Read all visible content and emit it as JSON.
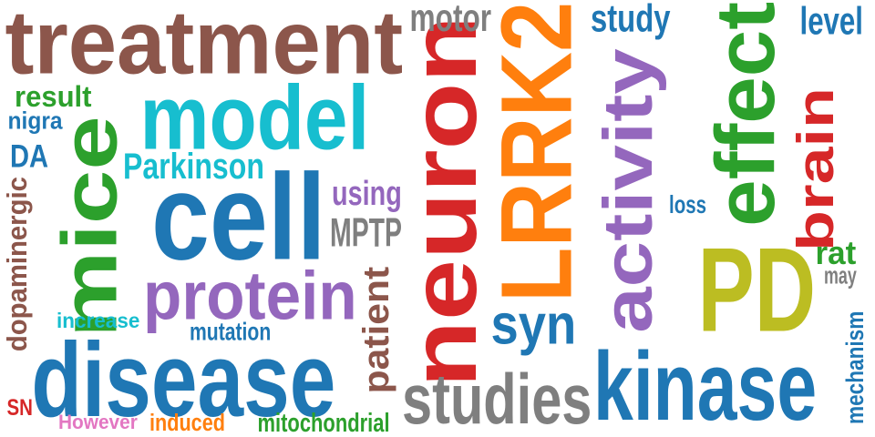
{
  "palette": {
    "brown": "#8c564b",
    "blue": "#1f77b4",
    "cyan": "#17becf",
    "green": "#2ca02c",
    "red": "#d62728",
    "orange": "#ff7f0e",
    "purple": "#9467bd",
    "gray": "#7f7f7f",
    "olive": "#bcbd22",
    "pink": "#e377c2"
  },
  "words": [
    {
      "key": "treatment",
      "text": "treatment",
      "color": "brown",
      "vertical": false
    },
    {
      "key": "neuron",
      "text": "neuron",
      "color": "red",
      "vertical": true
    },
    {
      "key": "lrrk2",
      "text": "LRRK2",
      "color": "orange",
      "vertical": true
    },
    {
      "key": "cell",
      "text": "cell",
      "color": "blue",
      "vertical": false
    },
    {
      "key": "disease",
      "text": "disease",
      "color": "blue",
      "vertical": false
    },
    {
      "key": "kinase",
      "text": "kinase",
      "color": "blue",
      "vertical": false
    },
    {
      "key": "effect",
      "text": "effect",
      "color": "green",
      "vertical": true
    },
    {
      "key": "pd",
      "text": "PD",
      "color": "olive",
      "vertical": false
    },
    {
      "key": "mice",
      "text": "mice",
      "color": "green",
      "vertical": true
    },
    {
      "key": "activity",
      "text": "activity",
      "color": "purple",
      "vertical": true
    },
    {
      "key": "model",
      "text": "model",
      "color": "cyan",
      "vertical": false
    },
    {
      "key": "protein",
      "text": "protein",
      "color": "purple",
      "vertical": false
    },
    {
      "key": "brain",
      "text": "brain",
      "color": "red",
      "vertical": true
    },
    {
      "key": "studies",
      "text": "studies",
      "color": "gray",
      "vertical": false
    },
    {
      "key": "syn",
      "text": "syn",
      "color": "blue",
      "vertical": false
    },
    {
      "key": "patient",
      "text": "patient",
      "color": "brown",
      "vertical": true
    },
    {
      "key": "parkinson",
      "text": "Parkinson",
      "color": "cyan",
      "vertical": false
    },
    {
      "key": "mptp",
      "text": "MPTP",
      "color": "gray",
      "vertical": false
    },
    {
      "key": "motor",
      "text": "motor",
      "color": "gray",
      "vertical": false
    },
    {
      "key": "study",
      "text": "study",
      "color": "blue",
      "vertical": false
    },
    {
      "key": "level",
      "text": "level",
      "color": "blue",
      "vertical": false
    },
    {
      "key": "using",
      "text": "using",
      "color": "purple",
      "vertical": false
    },
    {
      "key": "rat",
      "text": "rat",
      "color": "green",
      "vertical": false
    },
    {
      "key": "dopaminergic",
      "text": "dopaminergic",
      "color": "brown",
      "vertical": true
    },
    {
      "key": "result",
      "text": "result",
      "color": "green",
      "vertical": false
    },
    {
      "key": "da",
      "text": "DA",
      "color": "blue",
      "vertical": false
    },
    {
      "key": "nigra",
      "text": "nigra",
      "color": "blue",
      "vertical": false
    },
    {
      "key": "increase",
      "text": "increase",
      "color": "cyan",
      "vertical": false
    },
    {
      "key": "mutation",
      "text": "mutation",
      "color": "blue",
      "vertical": false
    },
    {
      "key": "loss",
      "text": "loss",
      "color": "blue",
      "vertical": false
    },
    {
      "key": "may",
      "text": "may",
      "color": "gray",
      "vertical": false
    },
    {
      "key": "mechanism",
      "text": "mechanism",
      "color": "blue",
      "vertical": true
    },
    {
      "key": "sn",
      "text": "SN",
      "color": "red",
      "vertical": false
    },
    {
      "key": "however",
      "text": "However",
      "color": "pink",
      "vertical": false
    },
    {
      "key": "induced",
      "text": "induced",
      "color": "orange",
      "vertical": false
    },
    {
      "key": "mitochondrial",
      "text": "mitochondrial",
      "color": "green",
      "vertical": false
    }
  ]
}
